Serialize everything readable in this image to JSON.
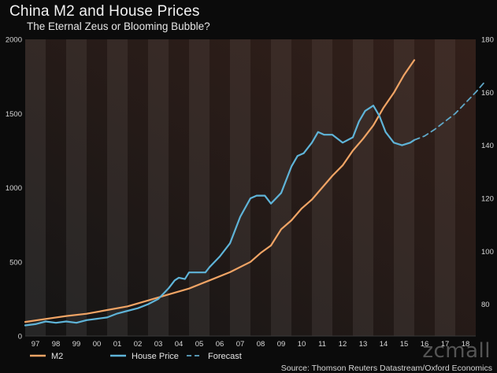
{
  "header": {
    "title": "China M2 and House Prices",
    "subtitle": "The Eternal Zeus or Blooming Bubble?"
  },
  "footer": {
    "source": "Source: Thomson Reuters Datastream/Oxford Economics",
    "watermark": "zcmall"
  },
  "chart_data": {
    "type": "line",
    "title": "China M2 and House Prices",
    "subtitle": "The Eternal Zeus or Blooming Bubble?",
    "xlabel": "",
    "ylabel": "",
    "x_ticks": [
      "97",
      "98",
      "99",
      "00",
      "01",
      "02",
      "03",
      "04",
      "05",
      "06",
      "07",
      "08",
      "09",
      "10",
      "11",
      "12",
      "13",
      "14",
      "15",
      "16",
      "17",
      "18"
    ],
    "xlim": [
      1997,
      2019
    ],
    "y_left": {
      "ylim": [
        0,
        2000
      ],
      "ticks": [
        0,
        500,
        1000,
        1500,
        2000
      ]
    },
    "y_right": {
      "ylim": [
        68,
        180
      ],
      "ticks": [
        80,
        100,
        120,
        140,
        160,
        180
      ]
    },
    "grid": "alternating vertical year bands",
    "legend_position": "bottom",
    "colors": {
      "M2": "#f0a465",
      "House Price": "#5fb4d8",
      "Forecast": "#5fa8c8",
      "band_dark": "#141414",
      "band_light": "#262626",
      "tint": "#7a3b28"
    },
    "series": [
      {
        "name": "M2",
        "axis": "left",
        "style": "solid",
        "points": [
          [
            1997.0,
            95
          ],
          [
            1998.0,
            115
          ],
          [
            1999.0,
            135
          ],
          [
            2000.0,
            150
          ],
          [
            2001.0,
            175
          ],
          [
            2002.0,
            200
          ],
          [
            2003.0,
            240
          ],
          [
            2004.0,
            280
          ],
          [
            2005.0,
            320
          ],
          [
            2006.0,
            375
          ],
          [
            2007.0,
            430
          ],
          [
            2008.0,
            500
          ],
          [
            2008.5,
            560
          ],
          [
            2009.0,
            610
          ],
          [
            2009.5,
            720
          ],
          [
            2010.0,
            780
          ],
          [
            2010.5,
            860
          ],
          [
            2011.0,
            920
          ],
          [
            2011.5,
            1000
          ],
          [
            2012.0,
            1080
          ],
          [
            2012.5,
            1150
          ],
          [
            2013.0,
            1250
          ],
          [
            2013.5,
            1330
          ],
          [
            2014.0,
            1420
          ],
          [
            2014.5,
            1540
          ],
          [
            2015.0,
            1640
          ],
          [
            2015.5,
            1760
          ],
          [
            2015.8,
            1820
          ],
          [
            2016.0,
            1860
          ]
        ]
      },
      {
        "name": "House Price",
        "axis": "right",
        "style": "solid",
        "points": [
          [
            1997.0,
            72
          ],
          [
            1997.5,
            72.5
          ],
          [
            1998.0,
            73.5
          ],
          [
            1998.5,
            73
          ],
          [
            1999.0,
            73.5
          ],
          [
            1999.5,
            73
          ],
          [
            2000.0,
            74
          ],
          [
            2000.5,
            74.5
          ],
          [
            2001.0,
            75
          ],
          [
            2001.5,
            76.5
          ],
          [
            2002.0,
            77.5
          ],
          [
            2002.5,
            78.5
          ],
          [
            2003.0,
            80
          ],
          [
            2003.5,
            82
          ],
          [
            2004.0,
            86
          ],
          [
            2004.3,
            89
          ],
          [
            2004.5,
            90
          ],
          [
            2004.8,
            89.5
          ],
          [
            2005.0,
            92
          ],
          [
            2005.5,
            92
          ],
          [
            2005.8,
            92
          ],
          [
            2006.0,
            94
          ],
          [
            2006.5,
            98
          ],
          [
            2007.0,
            103
          ],
          [
            2007.5,
            113
          ],
          [
            2008.0,
            120
          ],
          [
            2008.3,
            121
          ],
          [
            2008.7,
            121
          ],
          [
            2009.0,
            118
          ],
          [
            2009.5,
            122
          ],
          [
            2010.0,
            132
          ],
          [
            2010.3,
            136
          ],
          [
            2010.6,
            137
          ],
          [
            2011.0,
            141
          ],
          [
            2011.3,
            145
          ],
          [
            2011.6,
            144
          ],
          [
            2012.0,
            144
          ],
          [
            2012.5,
            141
          ],
          [
            2013.0,
            143
          ],
          [
            2013.3,
            149
          ],
          [
            2013.6,
            153
          ],
          [
            2014.0,
            155
          ],
          [
            2014.3,
            151
          ],
          [
            2014.6,
            145
          ],
          [
            2015.0,
            141
          ],
          [
            2015.4,
            140
          ],
          [
            2015.8,
            141
          ],
          [
            2016.0,
            142
          ]
        ]
      },
      {
        "name": "Forecast",
        "axis": "right",
        "style": "dashed",
        "points": [
          [
            2016.0,
            142
          ],
          [
            2016.5,
            143.5
          ],
          [
            2017.0,
            146
          ],
          [
            2017.5,
            149
          ],
          [
            2018.0,
            152
          ],
          [
            2018.5,
            156
          ],
          [
            2019.0,
            160
          ],
          [
            2019.5,
            164.5
          ]
        ]
      }
    ]
  }
}
